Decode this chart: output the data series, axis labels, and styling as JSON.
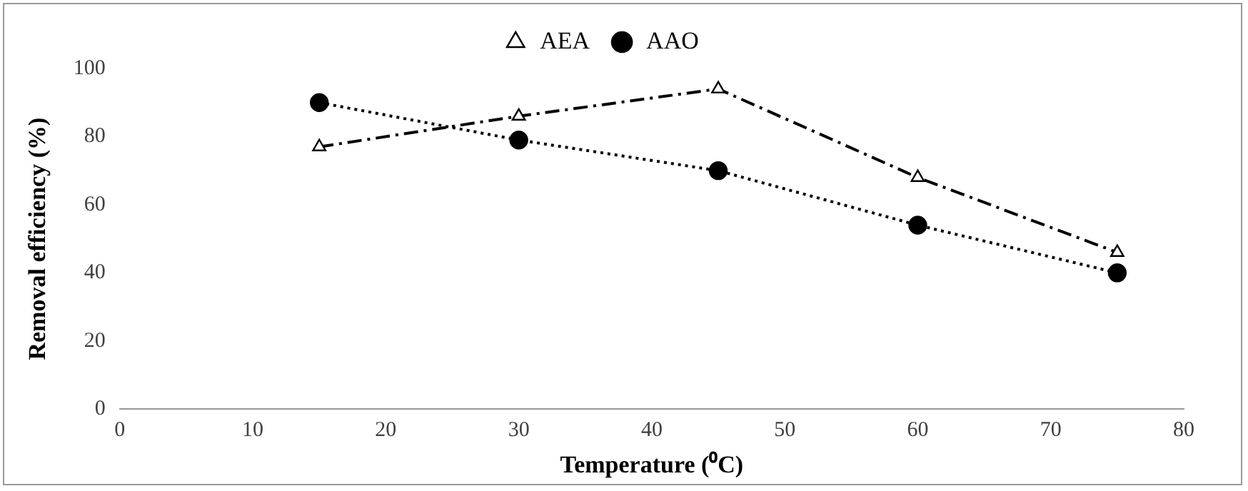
{
  "chart_data": {
    "type": "line",
    "xlabel": "Temperature (⁰C)",
    "ylabel": "Removal efficiency (%)",
    "x": [
      15,
      30,
      45,
      60,
      75
    ],
    "series": [
      {
        "name": "AEA",
        "color": "#000000",
        "values": [
          77,
          86,
          94,
          68,
          46
        ],
        "marker": "triangle",
        "line_style": "dashed"
      },
      {
        "name": "AAO",
        "color": "#000000",
        "values": [
          90,
          79,
          70,
          54,
          40
        ],
        "marker": "circle",
        "line_style": "dotted"
      }
    ],
    "xlim": [
      0,
      80
    ],
    "xticks": [
      0,
      10,
      20,
      30,
      40,
      50,
      60,
      70,
      80
    ],
    "ylim": [
      0,
      100
    ],
    "yticks": [
      0,
      20,
      40,
      60,
      80,
      100
    ],
    "grid": false,
    "legend": "top"
  }
}
